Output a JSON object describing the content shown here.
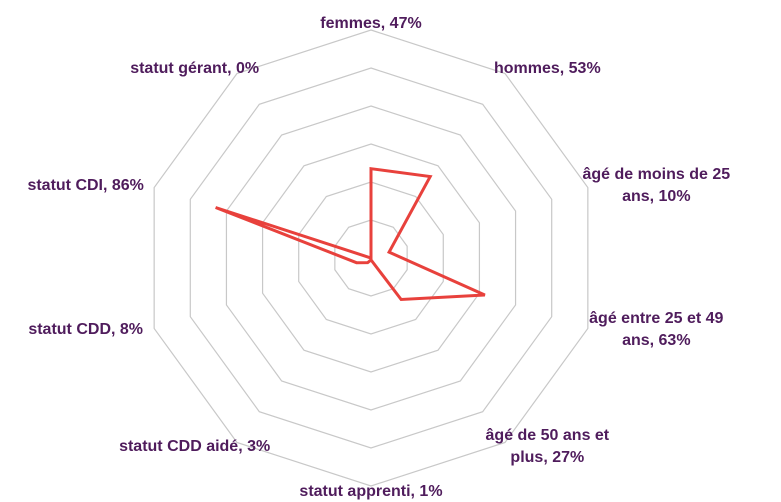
{
  "chart_data": {
    "type": "radar",
    "categories": [
      "femmes, 47%",
      "hommes, 53%",
      "âgé de moins de 25 ans, 10%",
      "âgé entre 25 et 49 ans, 63%",
      "âgé de 50 ans et plus, 27%",
      "statut apprenti, 1%",
      "statut CDD aidé, 3%",
      "statut CDD, 8%",
      "statut CDI, 86%",
      "statut gérant, 0%"
    ],
    "values": [
      47,
      53,
      10,
      63,
      27,
      1,
      3,
      8,
      86,
      0
    ],
    "color": "#e8413c",
    "ylim": [
      0,
      120
    ],
    "yticks": [
      20,
      40,
      60,
      80,
      100,
      120
    ],
    "grid": true
  }
}
